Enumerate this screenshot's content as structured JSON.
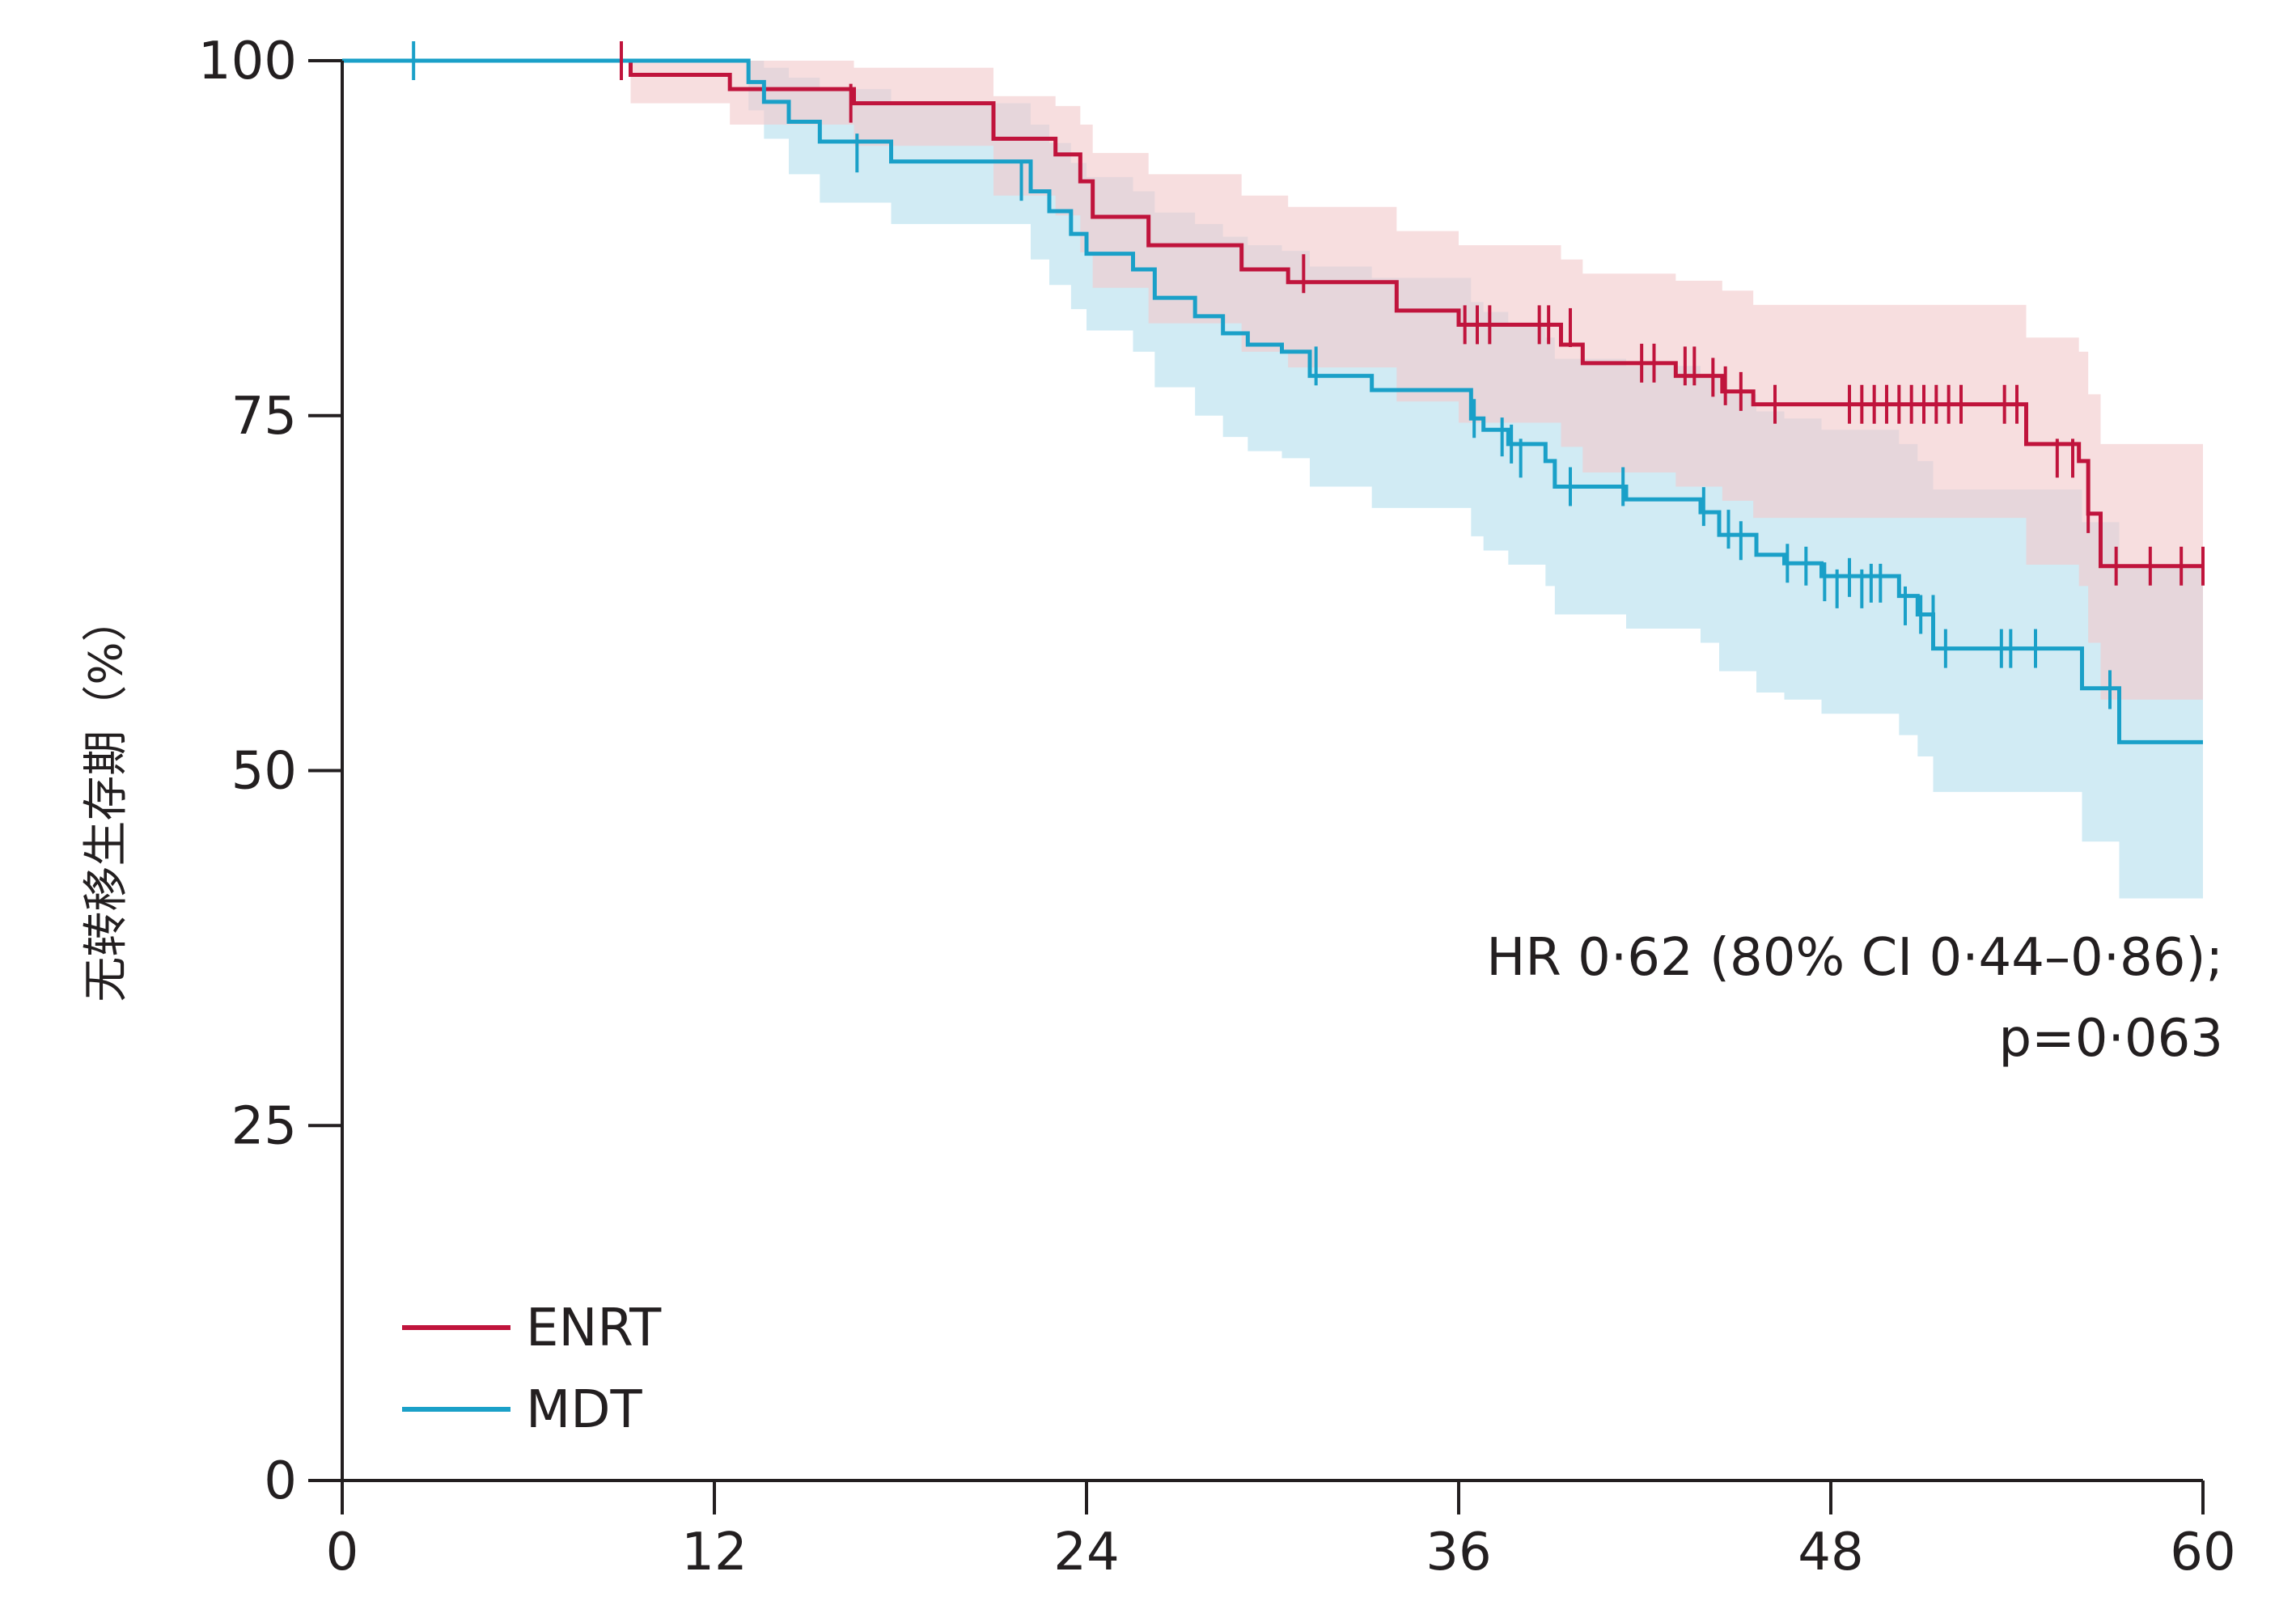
{
  "chart_data": {
    "type": "line",
    "subtype": "kaplan-meier",
    "title": "",
    "xlabel": "",
    "ylabel": "无转移生存期（%）",
    "xlim": [
      0,
      60
    ],
    "ylim": [
      0,
      100
    ],
    "xticks": [
      "0",
      "12",
      "24",
      "36",
      "48",
      "60"
    ],
    "yticks": [
      "0",
      "25",
      "50",
      "75",
      "100"
    ],
    "grid": false,
    "legend_position": "bottom-left",
    "annotation": [
      "HR 0·62 (80% CI 0·44–0·86);",
      "p=0·063"
    ],
    "series": [
      {
        "name": "ENRT",
        "color": "#c0143c",
        "band_color": "#f2c9cc",
        "steps": [
          [
            0,
            100
          ],
          [
            9.3,
            99
          ],
          [
            12.5,
            98
          ],
          [
            16.5,
            97
          ],
          [
            21,
            94.5
          ],
          [
            23,
            93.4
          ],
          [
            23.8,
            91.5
          ],
          [
            24.2,
            89
          ],
          [
            26,
            87
          ],
          [
            29,
            85.3
          ],
          [
            30.5,
            84.4
          ],
          [
            34,
            82.4
          ],
          [
            36,
            81.4
          ],
          [
            39.3,
            80
          ],
          [
            40,
            78.7
          ],
          [
            43,
            77.8
          ],
          [
            44.5,
            76.7
          ],
          [
            45.5,
            75.8
          ],
          [
            54.3,
            73
          ],
          [
            56,
            71.8
          ],
          [
            56.3,
            68.1
          ],
          [
            56.7,
            64.4
          ],
          [
            60,
            64.4
          ]
        ],
        "censored": [
          [
            9,
            100
          ],
          [
            16.4,
            97
          ],
          [
            31,
            85
          ],
          [
            36.2,
            81.4
          ],
          [
            36.6,
            81.4
          ],
          [
            37,
            81.4
          ],
          [
            38.6,
            81.4
          ],
          [
            38.9,
            81.4
          ],
          [
            39.6,
            81.2
          ],
          [
            41.9,
            78.7
          ],
          [
            42.3,
            78.7
          ],
          [
            43.3,
            78.5
          ],
          [
            43.6,
            78.5
          ],
          [
            44.2,
            77.7
          ],
          [
            44.6,
            77.1
          ],
          [
            45.1,
            76.7
          ],
          [
            46.2,
            75.8
          ],
          [
            48.6,
            75.8
          ],
          [
            49,
            75.8
          ],
          [
            49.4,
            75.8
          ],
          [
            49.8,
            75.8
          ],
          [
            50.2,
            75.8
          ],
          [
            50.6,
            75.8
          ],
          [
            51,
            75.8
          ],
          [
            51.4,
            75.8
          ],
          [
            51.8,
            75.8
          ],
          [
            52.2,
            75.8
          ],
          [
            53.6,
            75.8
          ],
          [
            54,
            75.8
          ],
          [
            55.3,
            72
          ],
          [
            55.8,
            72
          ],
          [
            56.3,
            68.1
          ],
          [
            57.2,
            64.4
          ],
          [
            58.3,
            64.4
          ],
          [
            59.3,
            64.4
          ],
          [
            60,
            64.4
          ]
        ],
        "lower": [
          [
            0,
            100
          ],
          [
            9.3,
            97
          ],
          [
            12.5,
            95.5
          ],
          [
            16.5,
            94
          ],
          [
            21,
            90.5
          ],
          [
            23,
            89.1
          ],
          [
            23.8,
            86.5
          ],
          [
            24.2,
            84
          ],
          [
            26,
            81.5
          ],
          [
            29,
            79.5
          ],
          [
            30.5,
            78.4
          ],
          [
            34,
            76
          ],
          [
            36,
            74.5
          ],
          [
            39.3,
            72.8
          ],
          [
            40,
            71
          ],
          [
            43,
            70
          ],
          [
            44.5,
            69
          ],
          [
            45.5,
            67.8
          ],
          [
            54.3,
            64.5
          ],
          [
            56,
            63
          ],
          [
            56.3,
            59
          ],
          [
            56.7,
            55
          ],
          [
            60,
            55
          ]
        ],
        "upper": [
          [
            0,
            100
          ],
          [
            9.3,
            100
          ],
          [
            12.5,
            100
          ],
          [
            16.5,
            99.5
          ],
          [
            21,
            97.5
          ],
          [
            23,
            96.8
          ],
          [
            23.8,
            95.5
          ],
          [
            24.2,
            93.5
          ],
          [
            26,
            92
          ],
          [
            29,
            90.5
          ],
          [
            30.5,
            89.7
          ],
          [
            34,
            88
          ],
          [
            36,
            87
          ],
          [
            39.3,
            86
          ],
          [
            40,
            85
          ],
          [
            43,
            84.5
          ],
          [
            44.5,
            83.8
          ],
          [
            45.5,
            82.8
          ],
          [
            54.3,
            80.5
          ],
          [
            56,
            79.5
          ],
          [
            56.3,
            76.5
          ],
          [
            56.7,
            73
          ],
          [
            60,
            73
          ]
        ]
      },
      {
        "name": "MDT",
        "color": "#1aa0c8",
        "band_color": "#c9e8f2",
        "steps": [
          [
            0,
            100
          ],
          [
            13.1,
            98.5
          ],
          [
            13.6,
            97.1
          ],
          [
            14.4,
            95.7
          ],
          [
            15.4,
            94.3
          ],
          [
            17.7,
            92.9
          ],
          [
            22.2,
            90.8
          ],
          [
            22.8,
            89.4
          ],
          [
            23.5,
            87.8
          ],
          [
            24,
            86.4
          ],
          [
            25.5,
            85.3
          ],
          [
            26.2,
            83.3
          ],
          [
            27.5,
            82
          ],
          [
            28.4,
            80.8
          ],
          [
            29.2,
            80
          ],
          [
            30.3,
            79.5
          ],
          [
            31.2,
            77.8
          ],
          [
            33.2,
            76.8
          ],
          [
            36.4,
            74.8
          ],
          [
            36.8,
            74
          ],
          [
            37.6,
            73
          ],
          [
            38.8,
            71.8
          ],
          [
            39.1,
            70
          ],
          [
            41.4,
            69.1
          ],
          [
            43.8,
            68.2
          ],
          [
            44.4,
            66.6
          ],
          [
            45.6,
            65.2
          ],
          [
            46.5,
            64.6
          ],
          [
            47.7,
            63.7
          ],
          [
            50.2,
            62.3
          ],
          [
            50.8,
            61
          ],
          [
            51.3,
            58.6
          ],
          [
            56.1,
            55.8
          ],
          [
            57.3,
            52
          ],
          [
            60,
            52
          ]
        ],
        "censored": [
          [
            2.3,
            100
          ],
          [
            16.6,
            93.5
          ],
          [
            21.9,
            91.5
          ],
          [
            31.4,
            78.5
          ],
          [
            36.5,
            74.8
          ],
          [
            37.4,
            73.5
          ],
          [
            37.7,
            73
          ],
          [
            38,
            72
          ],
          [
            39.6,
            70
          ],
          [
            41.3,
            70
          ],
          [
            43.9,
            68.6
          ],
          [
            44.7,
            67
          ],
          [
            45.1,
            66.2
          ],
          [
            46.6,
            64.6
          ],
          [
            47.2,
            64.4
          ],
          [
            47.8,
            63.3
          ],
          [
            48.2,
            62.8
          ],
          [
            48.6,
            63.6
          ],
          [
            49,
            62.8
          ],
          [
            49.3,
            63.2
          ],
          [
            49.6,
            63.2
          ],
          [
            50.4,
            61.6
          ],
          [
            50.9,
            61
          ],
          [
            51.3,
            61
          ],
          [
            51.7,
            58.6
          ],
          [
            53.5,
            58.6
          ],
          [
            53.8,
            58.6
          ],
          [
            54.6,
            58.6
          ],
          [
            57,
            55.7
          ]
        ],
        "lower": [
          [
            0,
            100
          ],
          [
            13.1,
            96.5
          ],
          [
            13.6,
            94.5
          ],
          [
            14.4,
            92
          ],
          [
            15.4,
            90
          ],
          [
            17.7,
            88.5
          ],
          [
            22.2,
            86
          ],
          [
            22.8,
            84.2
          ],
          [
            23.5,
            82.5
          ],
          [
            24,
            81
          ],
          [
            25.5,
            79.5
          ],
          [
            26.2,
            77
          ],
          [
            27.5,
            75
          ],
          [
            28.4,
            73.5
          ],
          [
            29.2,
            72.5
          ],
          [
            30.3,
            72
          ],
          [
            31.2,
            70
          ],
          [
            33.2,
            68.5
          ],
          [
            36.4,
            66.5
          ],
          [
            36.8,
            65.5
          ],
          [
            37.6,
            64.5
          ],
          [
            38.8,
            63
          ],
          [
            39.1,
            61
          ],
          [
            41.4,
            60
          ],
          [
            43.8,
            59
          ],
          [
            44.4,
            57
          ],
          [
            45.6,
            55.5
          ],
          [
            46.5,
            55
          ],
          [
            47.7,
            54
          ],
          [
            50.2,
            52.5
          ],
          [
            50.8,
            51
          ],
          [
            51.3,
            48.5
          ],
          [
            56.1,
            45
          ],
          [
            57.3,
            41
          ],
          [
            60,
            41
          ]
        ],
        "upper": [
          [
            0,
            100
          ],
          [
            13.1,
            100
          ],
          [
            13.6,
            99.5
          ],
          [
            14.4,
            98.8
          ],
          [
            15.4,
            98
          ],
          [
            17.7,
            97
          ],
          [
            22.2,
            95.5
          ],
          [
            22.8,
            94.2
          ],
          [
            23.5,
            92.8
          ],
          [
            24,
            91.8
          ],
          [
            25.5,
            90.8
          ],
          [
            26.2,
            89.3
          ],
          [
            27.5,
            88.5
          ],
          [
            28.4,
            87.6
          ],
          [
            29.2,
            87
          ],
          [
            30.3,
            86.6
          ],
          [
            31.2,
            85.5
          ],
          [
            33.2,
            84.7
          ],
          [
            36.4,
            83
          ],
          [
            36.8,
            82.3
          ],
          [
            37.6,
            81.5
          ],
          [
            38.8,
            80.5
          ],
          [
            39.1,
            79
          ],
          [
            41.4,
            78.5
          ],
          [
            43.8,
            77.8
          ],
          [
            44.4,
            76.5
          ],
          [
            45.6,
            75.3
          ],
          [
            46.5,
            74.8
          ],
          [
            47.7,
            74
          ],
          [
            50.2,
            73
          ],
          [
            50.8,
            71.8
          ],
          [
            51.3,
            69.8
          ],
          [
            56.1,
            67.5
          ],
          [
            57.3,
            64.5
          ],
          [
            60,
            64.5
          ]
        ]
      }
    ]
  }
}
